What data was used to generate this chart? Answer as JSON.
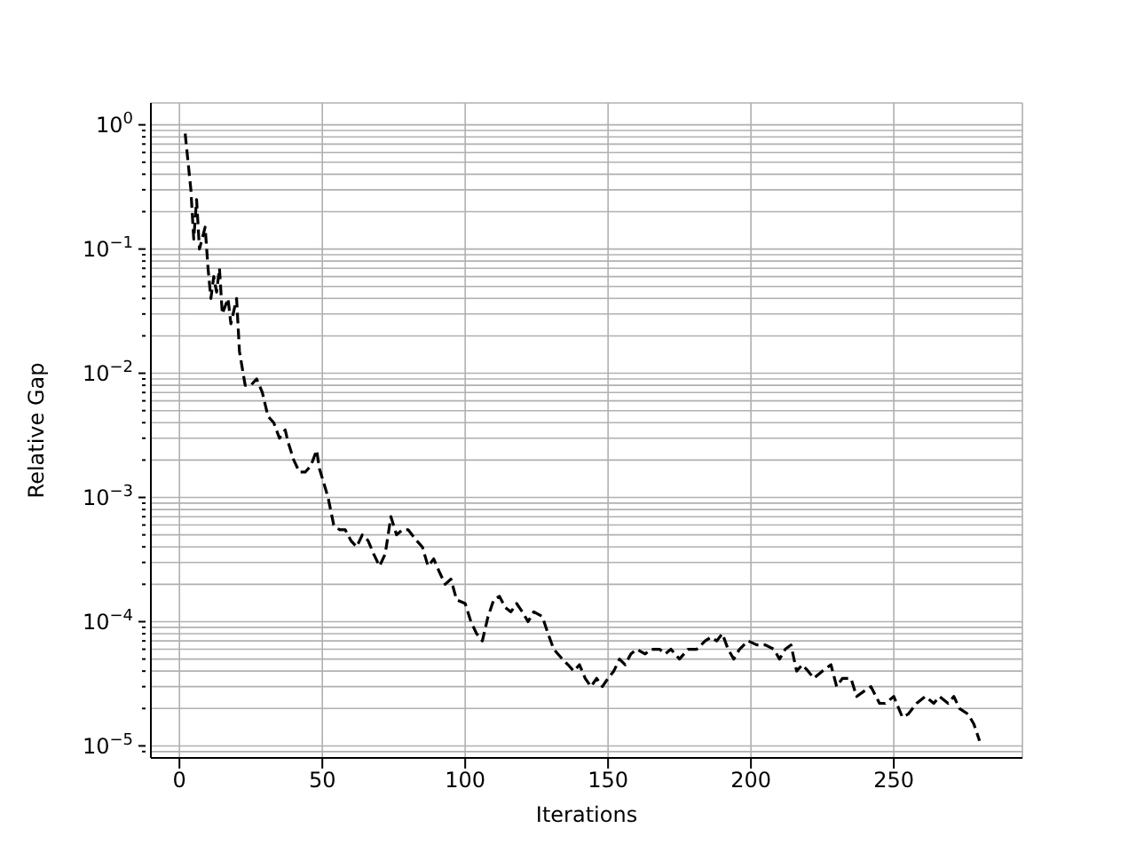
{
  "chart_data": {
    "type": "line",
    "xlabel": "Iterations",
    "ylabel": "Relative Gap",
    "log": "y",
    "grid": true,
    "line_style": "dashed",
    "xlim": [
      -10,
      295
    ],
    "xticks": [
      0,
      50,
      100,
      150,
      200,
      250
    ],
    "ylim": [
      8e-06,
      1.5
    ],
    "yticks": [
      {
        "value": 9e-06,
        "label": null
      },
      {
        "value": 1e-05,
        "label": "10$^{−5}$"
      },
      {
        "value": 2e-05,
        "label": null
      },
      {
        "value": 3e-05,
        "label": null
      },
      {
        "value": 4e-05,
        "label": null
      },
      {
        "value": 5e-05,
        "label": null
      },
      {
        "value": 6e-05,
        "label": null
      },
      {
        "value": 7e-05,
        "label": null
      },
      {
        "value": 8e-05,
        "label": null
      },
      {
        "value": 9e-05,
        "label": null
      },
      {
        "value": 0.0001,
        "label": "10$^{−4}$"
      },
      {
        "value": 0.0002,
        "label": null
      },
      {
        "value": 0.0003,
        "label": null
      },
      {
        "value": 0.0004,
        "label": null
      },
      {
        "value": 0.0005,
        "label": null
      },
      {
        "value": 0.0006,
        "label": null
      },
      {
        "value": 0.0007,
        "label": null
      },
      {
        "value": 0.0008,
        "label": null
      },
      {
        "value": 0.0009,
        "label": null
      },
      {
        "value": 0.001,
        "label": "10$^{−3}$"
      },
      {
        "value": 0.002,
        "label": null
      },
      {
        "value": 0.003,
        "label": null
      },
      {
        "value": 0.004,
        "label": null
      },
      {
        "value": 0.005,
        "label": null
      },
      {
        "value": 0.006,
        "label": null
      },
      {
        "value": 0.007,
        "label": null
      },
      {
        "value": 0.008,
        "label": null
      },
      {
        "value": 0.009,
        "label": null
      },
      {
        "value": 0.01,
        "label": "10$^{−2}$"
      },
      {
        "value": 0.02,
        "label": null
      },
      {
        "value": 0.03,
        "label": null
      },
      {
        "value": 0.04,
        "label": null
      },
      {
        "value": 0.05,
        "label": null
      },
      {
        "value": 0.06,
        "label": null
      },
      {
        "value": 0.07,
        "label": null
      },
      {
        "value": 0.08,
        "label": null
      },
      {
        "value": 0.09,
        "label": null
      },
      {
        "value": 0.1,
        "label": "10$^{−1}$"
      },
      {
        "value": 0.2,
        "label": null
      },
      {
        "value": 0.3,
        "label": null
      },
      {
        "value": 0.4,
        "label": null
      },
      {
        "value": 0.5,
        "label": null
      },
      {
        "value": 0.6,
        "label": null
      },
      {
        "value": 0.7,
        "label": null
      },
      {
        "value": 0.8,
        "label": null
      },
      {
        "value": 0.9,
        "label": null
      },
      {
        "value": 1,
        "label": "10$^{0}$"
      }
    ],
    "x": [
      2,
      4,
      5,
      6,
      7,
      9,
      10,
      11,
      12,
      13,
      14,
      15,
      17,
      18,
      20,
      21,
      23,
      25,
      27,
      29,
      31,
      33,
      35,
      37,
      38,
      40,
      42,
      44,
      46,
      48,
      49,
      51,
      52,
      54,
      56,
      58,
      60,
      62,
      64,
      66,
      68,
      70,
      72,
      74,
      76,
      78,
      80,
      83,
      85,
      87,
      89,
      91,
      93,
      95,
      97,
      100,
      102,
      104,
      106,
      108,
      110,
      112,
      114,
      116,
      118,
      120,
      122,
      124,
      127,
      129,
      131,
      134,
      136,
      138,
      140,
      142,
      144,
      146,
      148,
      150,
      152,
      154,
      156,
      158,
      160,
      163,
      165,
      168,
      170,
      172,
      175,
      178,
      181,
      184,
      186,
      188,
      190,
      192,
      194,
      196,
      199,
      202,
      205,
      208,
      210,
      212,
      214,
      216,
      218,
      220,
      222,
      225,
      228,
      230,
      232,
      235,
      237,
      240,
      242,
      245,
      247,
      250,
      253,
      255,
      258,
      261,
      264,
      266,
      269,
      271,
      273,
      276,
      278,
      280
    ],
    "series": [
      {
        "color": "#000000",
        "values": [
          0.85,
          0.3,
          0.12,
          0.25,
          0.1,
          0.15,
          0.07,
          0.04,
          0.06,
          0.045,
          0.07,
          0.03,
          0.04,
          0.025,
          0.04,
          0.015,
          0.008,
          0.008,
          0.009,
          0.007,
          0.0045,
          0.004,
          0.003,
          0.0035,
          0.0028,
          0.002,
          0.0016,
          0.0016,
          0.0018,
          0.0024,
          0.0017,
          0.0012,
          0.001,
          0.0006,
          0.00055,
          0.00055,
          0.00045,
          0.0004,
          0.0005,
          0.00045,
          0.00035,
          0.00028,
          0.00035,
          0.0007,
          0.0005,
          0.00055,
          0.00055,
          0.00045,
          0.0004,
          0.00028,
          0.00032,
          0.00025,
          0.0002,
          0.00022,
          0.00015,
          0.00014,
          0.0001,
          8e-05,
          7e-05,
          0.00011,
          0.00015,
          0.00016,
          0.00013,
          0.00012,
          0.00014,
          0.00012,
          0.0001,
          0.00012,
          0.00011,
          8e-05,
          6e-05,
          5e-05,
          4.5e-05,
          4e-05,
          4.5e-05,
          3.5e-05,
          3e-05,
          3.5e-05,
          3e-05,
          3.5e-05,
          4e-05,
          5e-05,
          4.5e-05,
          5.5e-05,
          6e-05,
          5.5e-05,
          6e-05,
          6e-05,
          5.5e-05,
          6e-05,
          5e-05,
          6e-05,
          6e-05,
          7e-05,
          7.5e-05,
          7e-05,
          8e-05,
          6e-05,
          5e-05,
          6e-05,
          7e-05,
          6.5e-05,
          6.5e-05,
          6e-05,
          5e-05,
          6e-05,
          6.5e-05,
          4e-05,
          4.5e-05,
          4e-05,
          3.5e-05,
          4e-05,
          4.5e-05,
          3e-05,
          3.5e-05,
          3.5e-05,
          2.5e-05,
          2.8e-05,
          3e-05,
          2.2e-05,
          2.2e-05,
          2.5e-05,
          1.7e-05,
          1.8e-05,
          2.2e-05,
          2.5e-05,
          2.2e-05,
          2.5e-05,
          2.2e-05,
          2.5e-05,
          2e-05,
          1.8e-05,
          1.5e-05,
          1.1e-05
        ]
      }
    ]
  }
}
